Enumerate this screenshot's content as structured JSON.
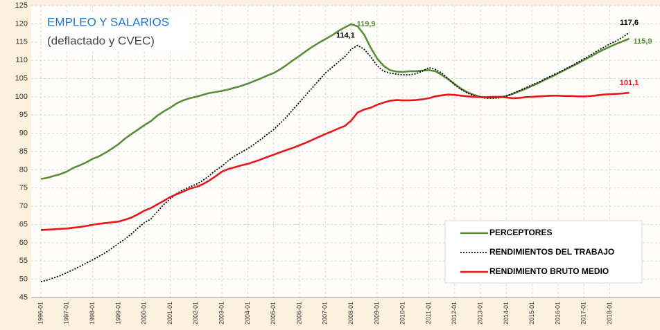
{
  "chart_data": {
    "type": "line",
    "title": "EMPLEO Y SALARIOS",
    "subtitle": "(deflactado y CVEC)",
    "categories": [
      "1996-01",
      null,
      null,
      null,
      "1997-01",
      null,
      null,
      null,
      "1998-01",
      null,
      null,
      null,
      "1999-01",
      null,
      null,
      null,
      "2000-01",
      null,
      null,
      null,
      "2001-01",
      null,
      null,
      null,
      "2002-01",
      null,
      null,
      null,
      "2003-01",
      null,
      null,
      null,
      "2004-01",
      null,
      null,
      null,
      "2005-01",
      null,
      null,
      null,
      "2006-01",
      null,
      null,
      null,
      "2007-01",
      null,
      null,
      null,
      "2008-01",
      null,
      null,
      null,
      "2009-01",
      null,
      null,
      null,
      "2010-01",
      null,
      null,
      null,
      "2011-01",
      null,
      null,
      null,
      "2012-01",
      null,
      null,
      null,
      "2013-01",
      null,
      null,
      null,
      "2014-01",
      null,
      null,
      null,
      "2015-01",
      null,
      null,
      null,
      "2016-01",
      null,
      null,
      null,
      "2017-01",
      null,
      null,
      null,
      "2018-01",
      null,
      null,
      null
    ],
    "series": [
      {
        "name": "PERCEPTORES",
        "color": "#5b8c3a",
        "dash": "solid",
        "values": [
          77.5,
          77.8,
          78.3,
          78.8,
          79.5,
          80.5,
          81.2,
          82.0,
          83.0,
          83.7,
          84.7,
          85.8,
          87.0,
          88.5,
          89.8,
          91.0,
          92.2,
          93.3,
          94.8,
          96.0,
          97.0,
          98.2,
          99.0,
          99.6,
          100.0,
          100.5,
          101.0,
          101.3,
          101.6,
          102.0,
          102.5,
          103.0,
          103.6,
          104.3,
          105.0,
          105.8,
          106.5,
          107.5,
          108.7,
          110.0,
          111.2,
          112.5,
          113.7,
          114.8,
          115.8,
          116.8,
          118.0,
          119.0,
          119.9,
          119.3,
          117.0,
          113.5,
          110.5,
          108.5,
          107.3,
          106.9,
          106.8,
          107.0,
          107.0,
          107.2,
          107.3,
          107.0,
          106.0,
          104.8,
          103.5,
          102.2,
          101.2,
          100.5,
          100.0,
          99.8,
          99.8,
          99.9,
          100.2,
          100.8,
          101.5,
          102.2,
          103.0,
          103.8,
          104.7,
          105.5,
          106.4,
          107.3,
          108.2,
          109.1,
          110.1,
          111.0,
          112.0,
          112.9,
          113.7,
          114.5,
          115.2,
          115.9
        ],
        "value_labels": [
          null,
          null,
          null,
          null,
          null,
          null,
          null,
          null,
          null,
          null,
          null,
          null,
          null,
          null,
          null,
          null,
          null,
          null,
          null,
          null,
          null,
          null,
          null,
          null,
          null,
          null,
          null,
          null,
          null,
          null,
          null,
          null,
          null,
          null,
          null,
          null,
          null,
          null,
          null,
          null,
          null,
          null,
          null,
          null,
          null,
          null,
          null,
          null,
          "119,9",
          null,
          null,
          null,
          null,
          null,
          null,
          null,
          null,
          null,
          null,
          null,
          null,
          null,
          null,
          null,
          null,
          null,
          null,
          null,
          null,
          null,
          null,
          null,
          null,
          null,
          null,
          null,
          null,
          null,
          null,
          null,
          null,
          null,
          null,
          null,
          null,
          null,
          null,
          null,
          null,
          null,
          null,
          "115,9"
        ]
      },
      {
        "name": "RENDIMIENTOS DEL TRABAJO",
        "color": "#000000",
        "dash": "dotted",
        "values": [
          49.3,
          49.8,
          50.4,
          51.0,
          51.8,
          52.6,
          53.5,
          54.4,
          55.3,
          56.3,
          57.3,
          58.5,
          59.8,
          61.0,
          62.4,
          64.0,
          65.5,
          66.5,
          68.5,
          70.5,
          72.0,
          73.5,
          74.5,
          75.3,
          76.0,
          77.0,
          78.3,
          79.8,
          81.0,
          82.5,
          83.8,
          84.8,
          85.8,
          87.0,
          88.3,
          89.7,
          91.0,
          92.7,
          94.5,
          96.5,
          98.5,
          100.5,
          102.5,
          104.5,
          106.5,
          108.0,
          109.5,
          111.0,
          113.0,
          114.1,
          113.0,
          111.0,
          108.5,
          107.0,
          106.5,
          106.2,
          106.0,
          106.0,
          106.3,
          107.0,
          108.0,
          107.5,
          106.5,
          105.0,
          103.3,
          102.0,
          101.0,
          100.3,
          99.8,
          99.6,
          99.6,
          99.7,
          100.2,
          100.9,
          101.7,
          102.5,
          103.3,
          104.0,
          104.9,
          105.8,
          106.6,
          107.5,
          108.4,
          109.4,
          110.4,
          111.4,
          112.5,
          113.5,
          114.5,
          115.3,
          116.3,
          117.6
        ],
        "value_labels": [
          null,
          null,
          null,
          null,
          null,
          null,
          null,
          null,
          null,
          null,
          null,
          null,
          null,
          null,
          null,
          null,
          null,
          null,
          null,
          null,
          null,
          null,
          null,
          null,
          null,
          null,
          null,
          null,
          null,
          null,
          null,
          null,
          null,
          null,
          null,
          null,
          null,
          null,
          null,
          null,
          null,
          null,
          null,
          null,
          null,
          null,
          null,
          null,
          null,
          "114,1",
          null,
          null,
          null,
          null,
          null,
          null,
          null,
          null,
          null,
          null,
          null,
          null,
          null,
          null,
          null,
          null,
          null,
          null,
          null,
          null,
          null,
          null,
          null,
          null,
          null,
          null,
          null,
          null,
          null,
          null,
          null,
          null,
          null,
          null,
          null,
          null,
          null,
          null,
          null,
          null,
          null,
          "117,6"
        ]
      },
      {
        "name": "RENDIMIENTO BRUTO MEDIO",
        "color": "#e8161b",
        "dash": "solid",
        "values": [
          63.5,
          63.6,
          63.7,
          63.8,
          63.9,
          64.1,
          64.3,
          64.6,
          64.9,
          65.2,
          65.4,
          65.6,
          65.8,
          66.3,
          66.9,
          67.8,
          68.8,
          69.5,
          70.5,
          71.5,
          72.5,
          73.3,
          74.0,
          74.8,
          75.3,
          76.0,
          77.0,
          78.2,
          79.5,
          80.2,
          80.7,
          81.2,
          81.6,
          82.2,
          82.8,
          83.5,
          84.1,
          84.8,
          85.4,
          86.0,
          86.7,
          87.4,
          88.2,
          89.0,
          89.8,
          90.5,
          91.3,
          92.0,
          93.5,
          95.7,
          96.5,
          97.0,
          97.8,
          98.4,
          98.9,
          99.1,
          99.0,
          99.0,
          99.1,
          99.3,
          99.6,
          100.1,
          100.4,
          100.6,
          100.5,
          100.3,
          100.1,
          100.0,
          99.9,
          99.9,
          100.0,
          100.0,
          99.8,
          99.6,
          99.7,
          99.9,
          100.0,
          100.1,
          100.2,
          100.3,
          100.3,
          100.2,
          100.2,
          100.1,
          100.1,
          100.2,
          100.4,
          100.6,
          100.7,
          100.8,
          100.9,
          101.1
        ],
        "value_labels": [
          null,
          null,
          null,
          null,
          null,
          null,
          null,
          null,
          null,
          null,
          null,
          null,
          null,
          null,
          null,
          null,
          null,
          null,
          null,
          null,
          null,
          null,
          null,
          null,
          null,
          null,
          null,
          null,
          null,
          null,
          null,
          null,
          null,
          null,
          null,
          null,
          null,
          null,
          null,
          null,
          null,
          null,
          null,
          null,
          null,
          null,
          null,
          null,
          null,
          null,
          null,
          null,
          null,
          null,
          null,
          null,
          null,
          null,
          null,
          null,
          null,
          null,
          null,
          null,
          null,
          null,
          null,
          null,
          null,
          null,
          null,
          null,
          null,
          null,
          null,
          null,
          null,
          null,
          null,
          null,
          null,
          null,
          null,
          null,
          null,
          null,
          null,
          null,
          null,
          null,
          null,
          "101,1"
        ]
      }
    ],
    "ylim": [
      45,
      125
    ],
    "yticks": [
      45,
      50,
      55,
      60,
      65,
      70,
      75,
      80,
      85,
      90,
      95,
      100,
      105,
      110,
      115,
      120,
      125
    ],
    "grid": true,
    "legend": "lower right"
  }
}
